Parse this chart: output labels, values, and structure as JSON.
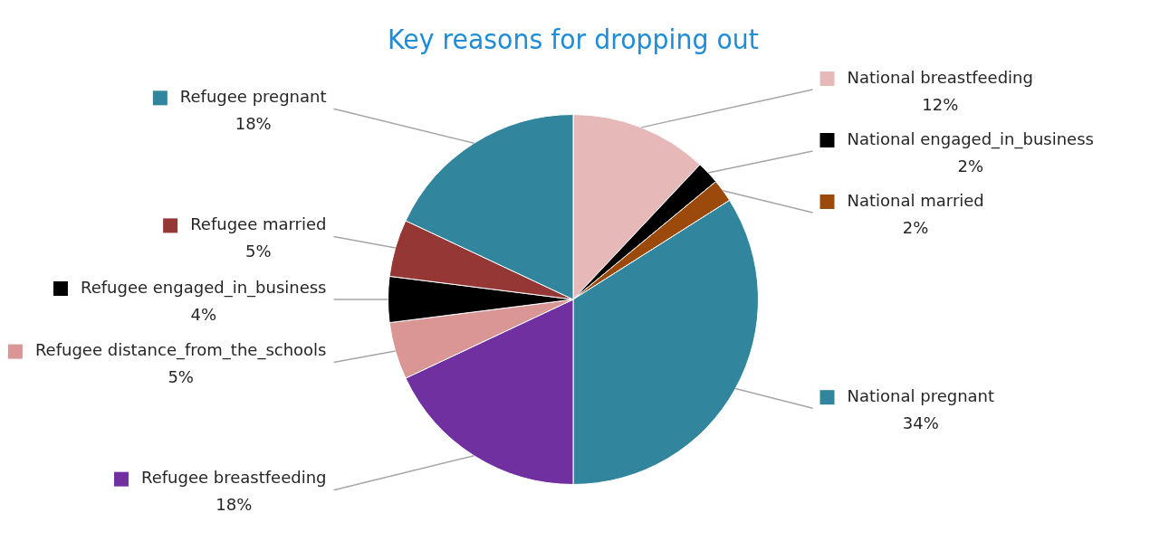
{
  "chart_data": {
    "type": "pie",
    "title": "Key reasons for dropping out",
    "categories": [
      "National breastfeeding",
      "National engaged_in_business",
      "National married",
      "National pregnant",
      "Refugee breastfeeding",
      "Refugee distance_from_the_schools",
      "Refugee engaged_in_business",
      "Refugee married",
      "Refugee pregnant"
    ],
    "values": [
      12,
      2,
      2,
      34,
      18,
      5,
      4,
      5,
      18
    ],
    "value_labels": [
      "12%",
      "2%",
      "2%",
      "34%",
      "18%",
      "5%",
      "4%",
      "5%",
      "18%"
    ],
    "legend": "top left",
    "colors": [
      "#e6b9b8",
      "#000000",
      "#9c4a0c",
      "#31859c",
      "#7030a0",
      "#d99694",
      "#000000",
      "#953735",
      "#31859c"
    ]
  }
}
